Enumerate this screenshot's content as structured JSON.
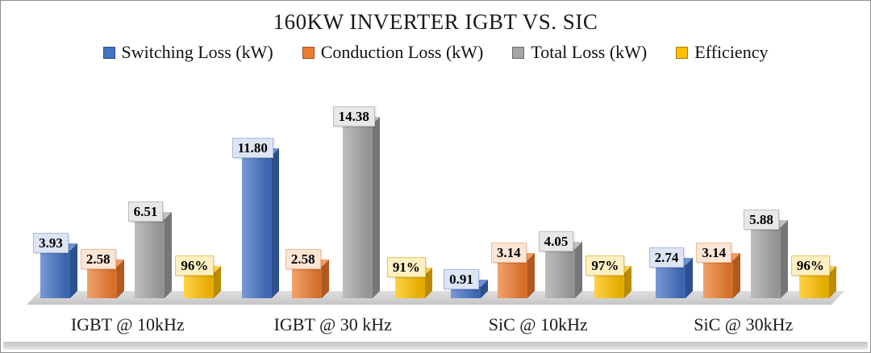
{
  "chart_data": {
    "type": "bar",
    "style": "3d-column",
    "title": "160KW INVERTER IGBT VS. SIC",
    "legend_position": "top",
    "grid": false,
    "categories": [
      "IGBT @ 10kHz",
      "IGBT @ 30 kHz",
      "SiC @ 10kHz",
      "SiC @ 30kHz"
    ],
    "axes": {
      "primary_unit": "kW",
      "primary_ylim": [
        0,
        16
      ],
      "secondary_unit": "%",
      "secondary_ylim": [
        0,
        100
      ]
    },
    "series": [
      {
        "name": "Switching Loss (kW)",
        "axis": "primary",
        "values": [
          3.93,
          11.8,
          0.91,
          2.74
        ],
        "labels": [
          "3.93",
          "11.80",
          "0.91",
          "2.74"
        ],
        "color": "#4472C4",
        "top_color": "#6F93D5",
        "side_color": "#2D4F8E",
        "label_bg": "#DDE5F4",
        "label_border": "#A9BCE2"
      },
      {
        "name": "Conduction Loss (kW)",
        "axis": "primary",
        "values": [
          2.58,
          2.58,
          3.14,
          3.14
        ],
        "labels": [
          "2.58",
          "2.58",
          "3.14",
          "3.14"
        ],
        "color": "#ED7D31",
        "top_color": "#F29E63",
        "side_color": "#AE5A21",
        "label_bg": "#FBE5D5",
        "label_border": "#F0BD95"
      },
      {
        "name": "Total Loss (kW)",
        "axis": "primary",
        "values": [
          6.51,
          14.38,
          4.05,
          5.88
        ],
        "labels": [
          "6.51",
          "14.38",
          "4.05",
          "5.88"
        ],
        "color": "#A5A5A5",
        "top_color": "#C3C3C3",
        "side_color": "#767676",
        "label_bg": "#E8E8E8",
        "label_border": "#BFBFBF"
      },
      {
        "name": "Efficiency",
        "axis": "secondary",
        "values": [
          96,
          91,
          97,
          96
        ],
        "labels": [
          "96%",
          "91%",
          "97%",
          "96%"
        ],
        "color": "#FFC000",
        "top_color": "#FFD34D",
        "side_color": "#B98B00",
        "label_bg": "#FFF0C2",
        "label_border": "#E8C660"
      }
    ]
  }
}
